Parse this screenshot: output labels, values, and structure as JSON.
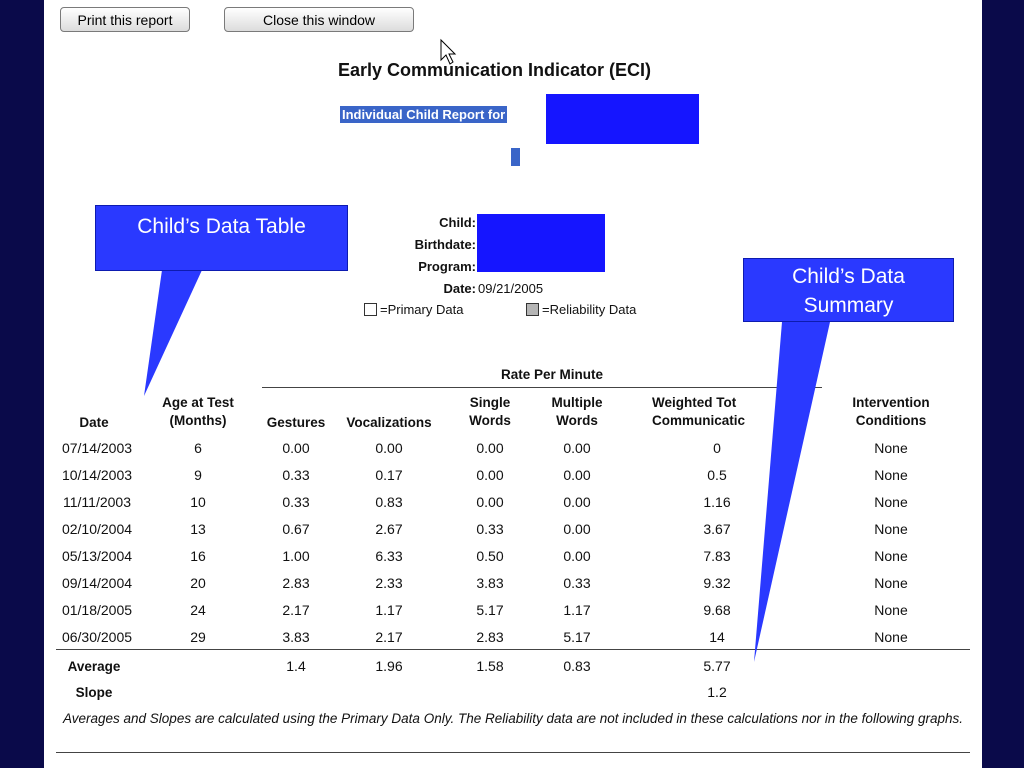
{
  "toolbar": {
    "print_label": "Print this report",
    "close_label": "Close this window"
  },
  "report": {
    "title": "Early Communication Indicator (ECI)",
    "subtitle": "Individual Child Report for"
  },
  "info": {
    "child_label": "Child:",
    "birthdate_label": "Birthdate:",
    "program_label": "Program:",
    "date_label": "Date:",
    "date_value": "09/21/2005"
  },
  "legend": {
    "primary": "=Primary Data",
    "reliability": "=Reliability Data"
  },
  "callouts": {
    "table": "Child’s Data Table",
    "summary_line1": "Child’s Data",
    "summary_line2": "Summary"
  },
  "table": {
    "group_header": "Rate Per Minute",
    "headers": {
      "date": "Date",
      "age_l1": "Age at Test",
      "age_l2": "(Months)",
      "gestures": "Gestures",
      "vocalizations": "Vocalizations",
      "single_l1": "Single",
      "single_l2": "Words",
      "multiple_l1": "Multiple",
      "multiple_l2": "Words",
      "weighted_l1": "Weighted Tot",
      "weighted_l2": "Communicatic",
      "intervention_l1": "Intervention",
      "intervention_l2": "Conditions"
    },
    "rows": [
      {
        "date": "07/14/2003",
        "age": "6",
        "gestures": "0.00",
        "vocalizations": "0.00",
        "single": "0.00",
        "multiple": "0.00",
        "weighted": "0",
        "intervention": "None"
      },
      {
        "date": "10/14/2003",
        "age": "9",
        "gestures": "0.33",
        "vocalizations": "0.17",
        "single": "0.00",
        "multiple": "0.00",
        "weighted": "0.5",
        "intervention": "None"
      },
      {
        "date": "11/11/2003",
        "age": "10",
        "gestures": "0.33",
        "vocalizations": "0.83",
        "single": "0.00",
        "multiple": "0.00",
        "weighted": "1.16",
        "intervention": "None"
      },
      {
        "date": "02/10/2004",
        "age": "13",
        "gestures": "0.67",
        "vocalizations": "2.67",
        "single": "0.33",
        "multiple": "0.00",
        "weighted": "3.67",
        "intervention": "None"
      },
      {
        "date": "05/13/2004",
        "age": "16",
        "gestures": "1.00",
        "vocalizations": "6.33",
        "single": "0.50",
        "multiple": "0.00",
        "weighted": "7.83",
        "intervention": "None"
      },
      {
        "date": "09/14/2004",
        "age": "20",
        "gestures": "2.83",
        "vocalizations": "2.33",
        "single": "3.83",
        "multiple": "0.33",
        "weighted": "9.32",
        "intervention": "None"
      },
      {
        "date": "01/18/2005",
        "age": "24",
        "gestures": "2.17",
        "vocalizations": "1.17",
        "single": "5.17",
        "multiple": "1.17",
        "weighted": "9.68",
        "intervention": "None"
      },
      {
        "date": "06/30/2005",
        "age": "29",
        "gestures": "3.83",
        "vocalizations": "2.17",
        "single": "2.83",
        "multiple": "5.17",
        "weighted": "14",
        "intervention": "None"
      }
    ],
    "average": {
      "label": "Average",
      "gestures": "1.4",
      "vocalizations": "1.96",
      "single": "1.58",
      "multiple": "0.83",
      "weighted": "5.77"
    },
    "slope": {
      "label": "Slope",
      "weighted": "1.2"
    }
  },
  "note": "Averages and Slopes are calculated using the Primary Data Only. The Reliability data are not included in these calculations nor in the following graphs.",
  "colors": {
    "frame": "#0a0a4a",
    "redaction": "#1515ff",
    "callout": "#2a39ff",
    "highlight": "#3a65c8"
  }
}
